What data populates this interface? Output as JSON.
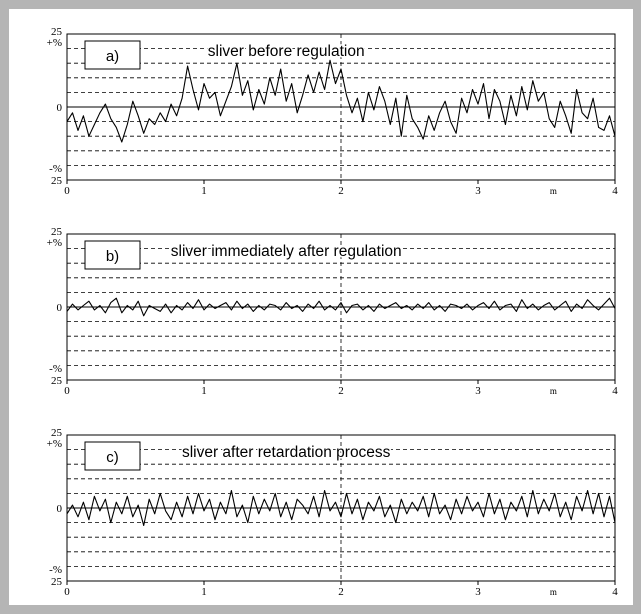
{
  "chart_data": [
    {
      "type": "line",
      "tag": "a)",
      "title": "sliver before regulation",
      "x_ticks": [
        "0",
        "1",
        "2",
        "3",
        "4"
      ],
      "x_unit": "m",
      "xlim": [
        0,
        4
      ],
      "ylim": [
        -25,
        25
      ],
      "y_tick_labels": {
        "top": "25",
        "plus": "+%",
        "zero": "0",
        "minus": "-%",
        "bottom": "25"
      },
      "gridlines_y": [
        20,
        15,
        10,
        5,
        -5,
        -10,
        -15,
        -20
      ],
      "series": [
        {
          "x": [
            0,
            0.04,
            0.08,
            0.12,
            0.16,
            0.2,
            0.24,
            0.28,
            0.32,
            0.36,
            0.4,
            0.44,
            0.48,
            0.52,
            0.56,
            0.6,
            0.64,
            0.68,
            0.72,
            0.76,
            0.8,
            0.84,
            0.88,
            0.92,
            0.96,
            1.0,
            1.04,
            1.08,
            1.12,
            1.16,
            1.2,
            1.24,
            1.28,
            1.32,
            1.36,
            1.4,
            1.44,
            1.48,
            1.52,
            1.56,
            1.6,
            1.64,
            1.68,
            1.72,
            1.76,
            1.8,
            1.84,
            1.88,
            1.92,
            1.96,
            2.0,
            2.04,
            2.08,
            2.12,
            2.16,
            2.2,
            2.24,
            2.28,
            2.32,
            2.36,
            2.4,
            2.44,
            2.48,
            2.52,
            2.56,
            2.6,
            2.64,
            2.68,
            2.72,
            2.76,
            2.8,
            2.84,
            2.88,
            2.92,
            2.96,
            3.0,
            3.04,
            3.08,
            3.12,
            3.16,
            3.2,
            3.24,
            3.28,
            3.32,
            3.36,
            3.4,
            3.44,
            3.48,
            3.52,
            3.56,
            3.6,
            3.64,
            3.68,
            3.72,
            3.76,
            3.8,
            3.84,
            3.88,
            3.92,
            3.96,
            4.0
          ],
          "y": [
            -5,
            -2,
            -8,
            -3,
            -10,
            -6,
            -2,
            1,
            -4,
            -7,
            -12,
            -6,
            2,
            -3,
            -9,
            -4,
            -6,
            -2,
            -5,
            1,
            -3,
            3,
            14,
            6,
            -1,
            8,
            3,
            5,
            -3,
            2,
            7,
            15,
            4,
            9,
            -1,
            6,
            1,
            10,
            4,
            13,
            2,
            8,
            -2,
            4,
            11,
            5,
            12,
            6,
            16,
            8,
            13,
            4,
            -2,
            3,
            -5,
            5,
            -1,
            7,
            2,
            -6,
            3,
            -10,
            4,
            -4,
            -7,
            -11,
            -3,
            -8,
            -2,
            2,
            -5,
            -9,
            3,
            -2,
            6,
            1,
            8,
            -4,
            6,
            2,
            -6,
            4,
            -3,
            7,
            -1,
            9,
            2,
            5,
            -4,
            -7,
            2,
            -3,
            -9,
            6,
            -2,
            -4,
            3,
            -7,
            -8,
            -3,
            -10
          ]
        }
      ]
    },
    {
      "type": "line",
      "tag": "b)",
      "title": "sliver immediately after regulation",
      "x_ticks": [
        "0",
        "1",
        "2",
        "3",
        "4"
      ],
      "x_unit": "m",
      "xlim": [
        0,
        4
      ],
      "ylim": [
        -25,
        25
      ],
      "y_tick_labels": {
        "top": "25",
        "plus": "+%",
        "zero": "0",
        "minus": "-%",
        "bottom": "25"
      },
      "gridlines_y": [
        20,
        15,
        10,
        5,
        -5,
        -10,
        -15,
        -20
      ],
      "series": [
        {
          "x": [
            0,
            0.04,
            0.08,
            0.12,
            0.16,
            0.2,
            0.24,
            0.28,
            0.32,
            0.36,
            0.4,
            0.44,
            0.48,
            0.52,
            0.56,
            0.6,
            0.64,
            0.68,
            0.72,
            0.76,
            0.8,
            0.84,
            0.88,
            0.92,
            0.96,
            1.0,
            1.04,
            1.08,
            1.12,
            1.16,
            1.2,
            1.24,
            1.28,
            1.32,
            1.36,
            1.4,
            1.44,
            1.48,
            1.52,
            1.56,
            1.6,
            1.64,
            1.68,
            1.72,
            1.76,
            1.8,
            1.84,
            1.88,
            1.92,
            1.96,
            2.0,
            2.04,
            2.08,
            2.12,
            2.16,
            2.2,
            2.24,
            2.28,
            2.32,
            2.36,
            2.4,
            2.44,
            2.48,
            2.52,
            2.56,
            2.6,
            2.64,
            2.68,
            2.72,
            2.76,
            2.8,
            2.84,
            2.88,
            2.92,
            2.96,
            3.0,
            3.04,
            3.08,
            3.12,
            3.16,
            3.2,
            3.24,
            3.28,
            3.32,
            3.36,
            3.4,
            3.44,
            3.48,
            3.52,
            3.56,
            3.6,
            3.64,
            3.68,
            3.72,
            3.76,
            3.8,
            3.84,
            3.88,
            3.92,
            3.96,
            4.0
          ],
          "y": [
            -1.5,
            1,
            -1,
            0.5,
            2,
            -1,
            0.5,
            -2,
            1.5,
            3,
            -2,
            0.5,
            -1,
            2,
            -3,
            0.5,
            -0.5,
            -1.5,
            1,
            -2,
            0.5,
            -1,
            1.5,
            -0.5,
            2.5,
            -1,
            1,
            -0.5,
            0.5,
            1.5,
            -1,
            2,
            -0.5,
            1,
            -1.5,
            0.5,
            -1,
            1,
            0.5,
            -1,
            1.5,
            -0.5,
            0.5,
            -1.5,
            1,
            -0.5,
            2,
            -1,
            0.5,
            -1,
            1.5,
            -2,
            0.5,
            1,
            -1,
            0.5,
            -1.5,
            1,
            -0.5,
            0.5,
            1.5,
            -0.5,
            0.5,
            -1,
            1,
            -0.5,
            1.5,
            -1,
            0.5,
            -1.5,
            1,
            0.5,
            -0.5,
            1,
            -1,
            0.5,
            1.5,
            -0.5,
            2,
            -1,
            0.5,
            1,
            -1.5,
            2.5,
            -0.5,
            1,
            -1,
            0.5,
            1.5,
            -1,
            0.5,
            2,
            -1.5,
            1,
            -0.5,
            2.5,
            0.5,
            -1,
            1,
            3,
            -0.5
          ]
        }
      ]
    },
    {
      "type": "line",
      "tag": "c)",
      "title": "sliver after retardation process",
      "x_ticks": [
        "0",
        "1",
        "2",
        "3",
        "4"
      ],
      "x_unit": "m",
      "xlim": [
        0,
        4
      ],
      "ylim": [
        -25,
        25
      ],
      "y_tick_labels": {
        "top": "25",
        "plus": "+%",
        "zero": "0",
        "minus": "-%",
        "bottom": "25"
      },
      "gridlines_y": [
        20,
        15,
        10,
        5,
        -5,
        -10,
        -15,
        -20
      ],
      "series": [
        {
          "x": [
            0,
            0.04,
            0.08,
            0.12,
            0.16,
            0.2,
            0.24,
            0.28,
            0.32,
            0.36,
            0.4,
            0.44,
            0.48,
            0.52,
            0.56,
            0.6,
            0.64,
            0.68,
            0.72,
            0.76,
            0.8,
            0.84,
            0.88,
            0.92,
            0.96,
            1.0,
            1.04,
            1.08,
            1.12,
            1.16,
            1.2,
            1.24,
            1.28,
            1.32,
            1.36,
            1.4,
            1.44,
            1.48,
            1.52,
            1.56,
            1.6,
            1.64,
            1.68,
            1.72,
            1.76,
            1.8,
            1.84,
            1.88,
            1.92,
            1.96,
            2.0,
            2.04,
            2.08,
            2.12,
            2.16,
            2.2,
            2.24,
            2.28,
            2.32,
            2.36,
            2.4,
            2.44,
            2.48,
            2.52,
            2.56,
            2.6,
            2.64,
            2.68,
            2.72,
            2.76,
            2.8,
            2.84,
            2.88,
            2.92,
            2.96,
            3.0,
            3.04,
            3.08,
            3.12,
            3.16,
            3.2,
            3.24,
            3.28,
            3.32,
            3.36,
            3.4,
            3.44,
            3.48,
            3.52,
            3.56,
            3.6,
            3.64,
            3.68,
            3.72,
            3.76,
            3.8,
            3.84,
            3.88,
            3.92,
            3.96,
            4.0
          ],
          "y": [
            -2,
            1,
            -3,
            2,
            -4,
            4,
            -1,
            3,
            -5,
            2,
            -2,
            4,
            -3,
            1,
            -6,
            3,
            -2,
            5,
            -1,
            -4,
            2,
            -3,
            4,
            -2,
            5,
            -1,
            3,
            -4,
            2,
            -2,
            6,
            -3,
            1,
            -5,
            4,
            -2,
            3,
            -1,
            5,
            -3,
            2,
            -4,
            3,
            1,
            -2,
            4,
            -3,
            6,
            -1,
            2,
            -3,
            5,
            -2,
            3,
            -4,
            2,
            -1,
            4,
            -3,
            1,
            -5,
            3,
            -2,
            2,
            -1,
            4,
            -3,
            5,
            -2,
            1,
            -4,
            3,
            -2,
            4,
            -1,
            2,
            -3,
            5,
            -2,
            3,
            -4,
            2,
            -1,
            4,
            -3,
            6,
            -2,
            3,
            -1,
            5,
            -3,
            2,
            -4,
            4,
            -1,
            6,
            -2,
            5,
            -3,
            4,
            -5
          ]
        }
      ]
    }
  ]
}
